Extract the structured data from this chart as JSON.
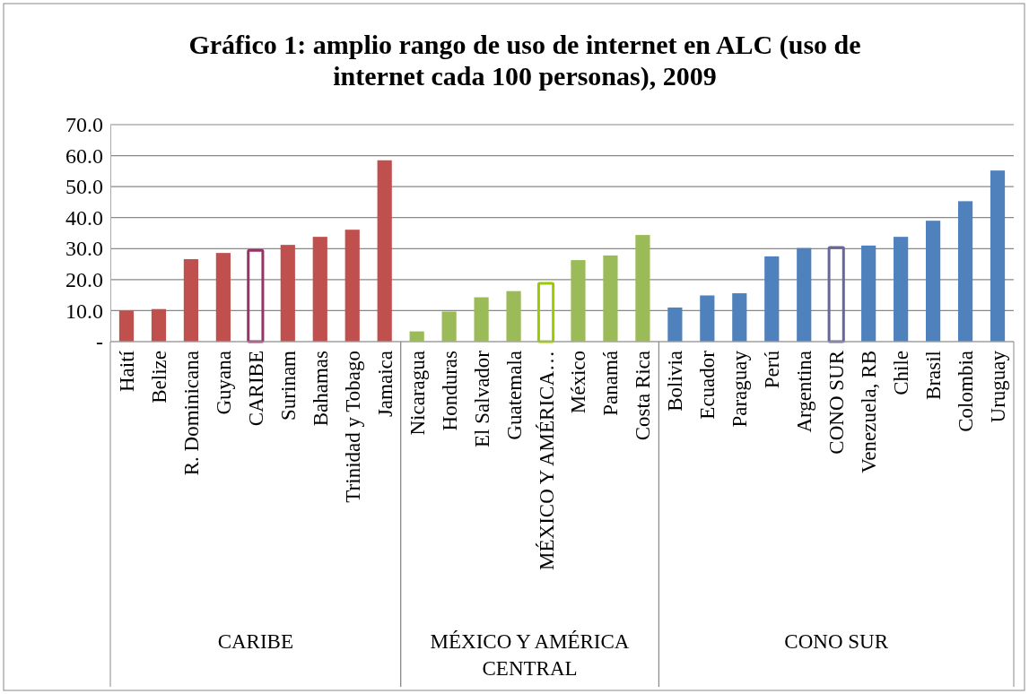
{
  "chart_data": {
    "type": "bar",
    "title": "Gráfico 1: amplio rango de uso de internet en ALC (uso de internet cada 100 personas), 2009",
    "categories": [
      "Haití",
      "Belize",
      "R. Dominicana",
      "Guyana",
      "CARIBE",
      "Surinam",
      "Bahamas",
      "Trinidad y Tobago",
      "Jamaica",
      "Nicaragua",
      "Honduras",
      "El Salvador",
      "Guatemala",
      "MÉXICO Y AMÉRICA…",
      "México",
      "Panamá",
      "Costa Rica",
      "Bolivia",
      "Ecuador",
      "Paraguay",
      "Perú",
      "Argentina",
      "CONO SUR",
      "Venezuela, RB",
      "Chile",
      "Brasil",
      "Colombia",
      "Uruguay"
    ],
    "series": [
      {
        "color": "#c0504d",
        "values": [
          10.0,
          10.5,
          26.6,
          28.6,
          null,
          31.2,
          33.8,
          36.1,
          58.5,
          null,
          null,
          null,
          null,
          null,
          null,
          null,
          null,
          null,
          null,
          null,
          null,
          null,
          null,
          null,
          null,
          null,
          null,
          null
        ]
      },
      {
        "color": "#9bbb59",
        "values": [
          null,
          null,
          null,
          null,
          null,
          null,
          null,
          null,
          null,
          3.3,
          9.7,
          14.3,
          16.3,
          null,
          26.3,
          27.8,
          34.4,
          null,
          null,
          null,
          null,
          null,
          null,
          null,
          null,
          null,
          null,
          null
        ]
      },
      {
        "color": "#4f81bd",
        "values": [
          null,
          null,
          null,
          null,
          null,
          null,
          null,
          null,
          null,
          null,
          null,
          null,
          null,
          null,
          null,
          null,
          null,
          11.0,
          14.9,
          15.6,
          27.5,
          30.2,
          null,
          31.0,
          33.8,
          39.0,
          45.3,
          55.2
        ]
      },
      {
        "colors": [
          null,
          null,
          null,
          null,
          "#993366",
          null,
          null,
          null,
          null,
          null,
          null,
          null,
          null,
          "#99cc00",
          null,
          null,
          null,
          null,
          null,
          null,
          null,
          null,
          "#666699",
          null,
          null,
          null,
          null,
          null
        ],
        "values": [
          null,
          null,
          null,
          null,
          29.4,
          null,
          null,
          null,
          null,
          null,
          null,
          null,
          null,
          18.8,
          null,
          null,
          null,
          null,
          null,
          null,
          null,
          null,
          30.4,
          null,
          null,
          null,
          null,
          null
        ]
      }
    ],
    "annotations": [
      "CARIBE",
      "MÉXICO Y AMÉRICA CENTRAL",
      "CONO SUR"
    ],
    "ylim": [
      0,
      70
    ],
    "yticks": [
      {
        "value": 0,
        "label": "-"
      },
      {
        "value": 10,
        "label": "10.0"
      },
      {
        "value": 20,
        "label": "20.0"
      },
      {
        "value": 30,
        "label": "30.0"
      },
      {
        "value": 40,
        "label": "40.0"
      },
      {
        "value": 50,
        "label": "50.0"
      },
      {
        "value": 60,
        "label": "60.0"
      },
      {
        "value": 70,
        "label": "70.0"
      }
    ],
    "grid": true
  }
}
